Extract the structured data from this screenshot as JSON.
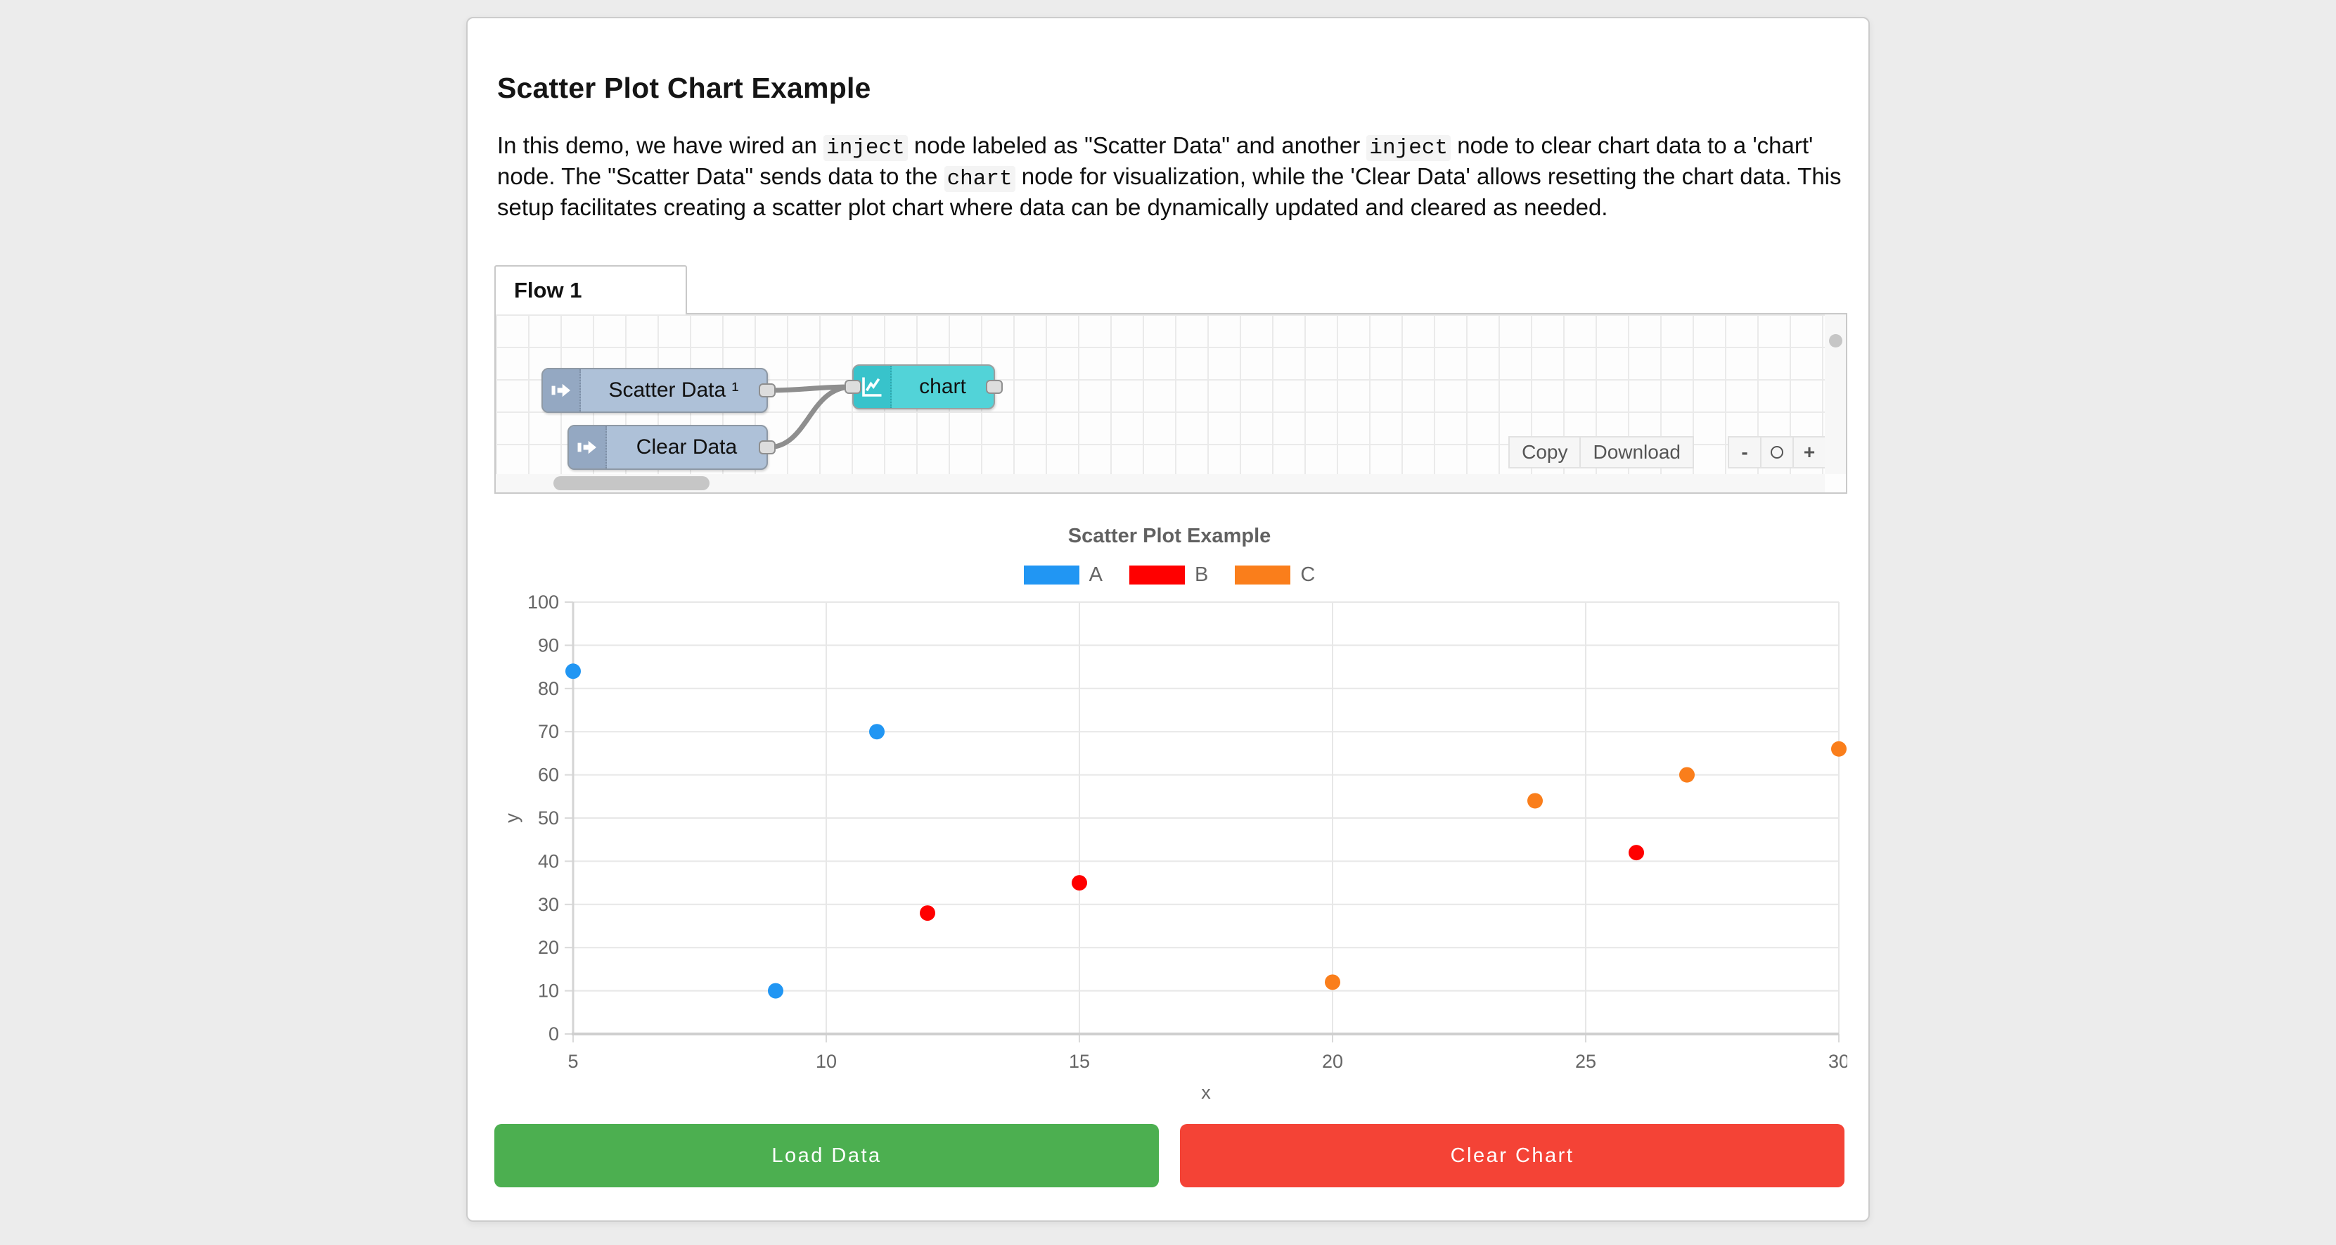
{
  "page": {
    "title": "Scatter Plot Chart Example"
  },
  "intro": {
    "segments": [
      {
        "text": "In this demo, we have wired an "
      },
      {
        "code": "inject"
      },
      {
        "text": " node labeled as \"Scatter Data\" and another "
      },
      {
        "code": "inject"
      },
      {
        "text": " node to clear chart data to a 'chart' node. The \"Scatter Data\" sends data to the "
      },
      {
        "code": "chart"
      },
      {
        "text": " node for visualization, while the 'Clear Data' allows resetting the chart data. This setup facilitates creating a scatter plot chart where data can be dynamically updated and cleared as needed."
      }
    ]
  },
  "flow": {
    "tab_label": "Flow 1",
    "nodes": [
      {
        "label": "Scatter Data ¹",
        "type": "inject",
        "color": "#aec1d8",
        "icon_bg": "#94a8c2",
        "border": "#8e99a5"
      },
      {
        "label": "Clear Data",
        "type": "inject",
        "color": "#aec1d8",
        "icon_bg": "#94a8c2",
        "border": "#8e99a5"
      },
      {
        "label": "chart",
        "type": "chart",
        "color": "#52d3d8",
        "icon_bg": "#38c3cb",
        "border": "#9aa0a0"
      }
    ],
    "toolbar": {
      "copy_label": "Copy",
      "download_label": "Download",
      "zoom_out_label": "-",
      "zoom_in_label": "+"
    }
  },
  "chart_data": {
    "type": "scatter",
    "title": "Scatter Plot Example",
    "xlabel": "x",
    "ylabel": "y",
    "xlim": [
      5,
      30
    ],
    "ylim": [
      0,
      100
    ],
    "x_step": 5,
    "y_step": 10,
    "grid": true,
    "legend_position": "top",
    "series": [
      {
        "name": "A",
        "color": "#2196f3",
        "points": [
          [
            5,
            84
          ],
          [
            9,
            10
          ],
          [
            11,
            70
          ]
        ]
      },
      {
        "name": "B",
        "color": "#ff0000",
        "points": [
          [
            12,
            28
          ],
          [
            15,
            35
          ],
          [
            26,
            42
          ]
        ]
      },
      {
        "name": "C",
        "color": "#fa7e1b",
        "points": [
          [
            20,
            12
          ],
          [
            24,
            54
          ],
          [
            27,
            60
          ],
          [
            30,
            66
          ]
        ]
      }
    ]
  },
  "actions": {
    "load_button": {
      "label": "Load Data",
      "color": "#4caf50"
    },
    "clear_button": {
      "label": "Clear Chart",
      "color": "#f44336"
    }
  }
}
